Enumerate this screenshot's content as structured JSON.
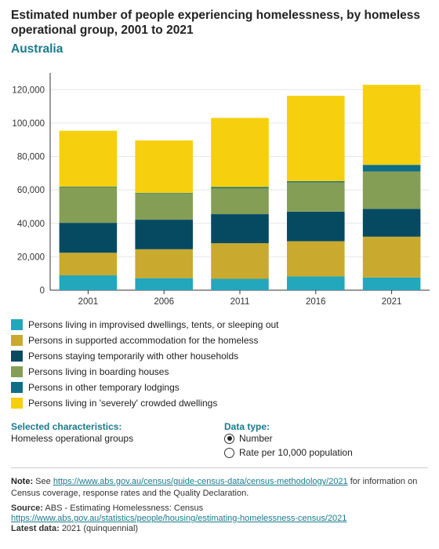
{
  "header": {
    "title": "Estimated number of people experiencing homelessness, by homeless operational group, 2001 to 2021",
    "subtitle": "Australia"
  },
  "chart_data": {
    "type": "bar",
    "stacked": true,
    "categories": [
      "2001",
      "2006",
      "2011",
      "2016",
      "2021"
    ],
    "series": [
      {
        "name": "Persons living in improvised dwellings, tents, or sleeping out",
        "color": "#22a7bd",
        "values": [
          8900,
          7200,
          6800,
          8200,
          7600
        ]
      },
      {
        "name": "Persons in supported accommodation for the homeless",
        "color": "#c9aa2e",
        "values": [
          13500,
          17300,
          21300,
          21100,
          24400
        ]
      },
      {
        "name": "Persons staying temporarily with other households",
        "color": "#064a62",
        "values": [
          17900,
          17700,
          17400,
          17700,
          16700
        ]
      },
      {
        "name": "Persons living in boarding houses",
        "color": "#849f55",
        "values": [
          21400,
          15400,
          15500,
          17500,
          22400
        ]
      },
      {
        "name": "Persons in other temporary lodgings",
        "color": "#0e6e88",
        "values": [
          300,
          500,
          700,
          700,
          3900
        ]
      },
      {
        "name": "Persons living in 'severely' crowded dwellings",
        "color": "#f6cf0e",
        "values": [
          33400,
          31500,
          41400,
          51100,
          47900
        ]
      }
    ],
    "y_ticks": [
      "0",
      "20,000",
      "40,000",
      "60,000",
      "80,000",
      "100,000",
      "120,000"
    ],
    "ylim": [
      0,
      130000
    ],
    "grid": true,
    "legend_position": "bottom"
  },
  "controls": {
    "selected_characteristics_label": "Selected characteristics:",
    "selected_characteristics_value": "Homeless operational groups",
    "data_type_label": "Data type:",
    "options": [
      "Number",
      "Rate per 10,000 population"
    ],
    "selected_option": "Number"
  },
  "footer": {
    "note_label": "Note:",
    "note_prefix": "See",
    "note_link": "https://www.abs.gov.au/census/guide-census-data/census-methodology/2021",
    "note_suffix": "for information on Census coverage, response rates and the Quality Declaration.",
    "source_label": "Source:",
    "source_text": "ABS - Estimating Homelessness: Census",
    "source_link": "https://www.abs.gov.au/statistics/people/housing/estimating-homelessness-census/2021",
    "latest_label": "Latest data:",
    "latest_text": "2021 (quinquennial)"
  }
}
